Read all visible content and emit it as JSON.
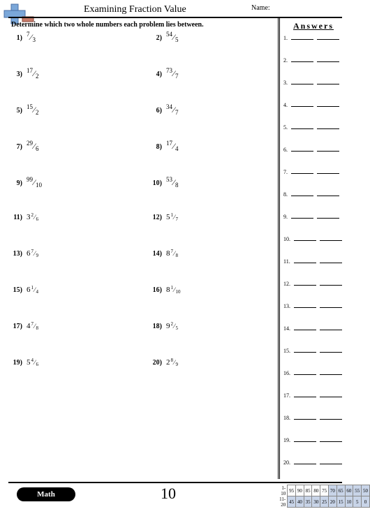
{
  "header": {
    "title": "Examining Fraction Value",
    "name_label": "Name:"
  },
  "instruction": "Determine which two whole numbers each problem lies between.",
  "answers_header": "Answers",
  "problems": [
    {
      "n": "1",
      "num": "7",
      "den": "3"
    },
    {
      "n": "2",
      "num": "54",
      "den": "5"
    },
    {
      "n": "3",
      "num": "17",
      "den": "2"
    },
    {
      "n": "4",
      "num": "73",
      "den": "7"
    },
    {
      "n": "5",
      "num": "15",
      "den": "2"
    },
    {
      "n": "6",
      "num": "34",
      "den": "7"
    },
    {
      "n": "7",
      "num": "29",
      "den": "6"
    },
    {
      "n": "8",
      "num": "17",
      "den": "4"
    },
    {
      "n": "9",
      "num": "99",
      "den": "10"
    },
    {
      "n": "10",
      "num": "53",
      "den": "8"
    },
    {
      "n": "11",
      "whole": "3",
      "num": "2",
      "den": "6"
    },
    {
      "n": "12",
      "whole": "5",
      "num": "1",
      "den": "7"
    },
    {
      "n": "13",
      "whole": "6",
      "num": "7",
      "den": "9"
    },
    {
      "n": "14",
      "whole": "8",
      "num": "7",
      "den": "8"
    },
    {
      "n": "15",
      "whole": "6",
      "num": "1",
      "den": "4"
    },
    {
      "n": "16",
      "whole": "8",
      "num": "1",
      "den": "10"
    },
    {
      "n": "17",
      "whole": "4",
      "num": "7",
      "den": "8"
    },
    {
      "n": "18",
      "whole": "9",
      "num": "2",
      "den": "5"
    },
    {
      "n": "19",
      "whole": "5",
      "num": "4",
      "den": "6"
    },
    {
      "n": "20",
      "whole": "2",
      "num": "8",
      "den": "9"
    }
  ],
  "answer_count": 20,
  "footer": {
    "badge": "Math",
    "page_number": "10",
    "score_rows": [
      {
        "label": "1-10",
        "cells": [
          "95",
          "90",
          "85",
          "80",
          "75",
          "70",
          "65",
          "60",
          "55",
          "50"
        ],
        "shade_from": 5
      },
      {
        "label": "11-20",
        "cells": [
          "45",
          "40",
          "35",
          "30",
          "25",
          "20",
          "15",
          "10",
          "5",
          "0"
        ],
        "shade_from": 0
      }
    ]
  },
  "layout": {
    "problem_row_height": 52,
    "answer_row_height": 32,
    "answer_top_start": 50
  },
  "colors": {
    "page_bg": "#ffffff",
    "body_bg": "#e8e8e8",
    "shade": "#c8d4e8",
    "line": "#000000"
  }
}
